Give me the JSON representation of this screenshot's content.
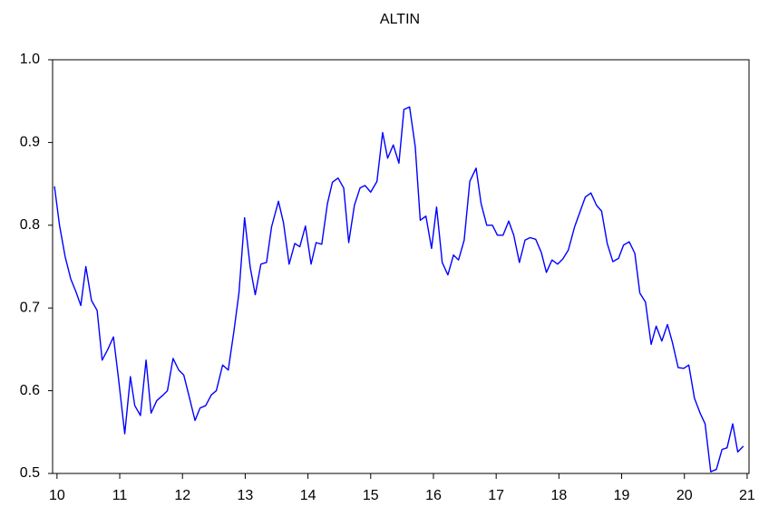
{
  "chart_data": {
    "type": "line",
    "title": "ALTIN",
    "color": "#0000ff",
    "x": [
      9.96,
      10.04,
      10.13,
      10.22,
      10.3,
      10.38,
      10.46,
      10.55,
      10.64,
      10.72,
      10.81,
      10.9,
      10.98,
      11.08,
      11.17,
      11.24,
      11.33,
      11.42,
      11.5,
      11.59,
      11.68,
      11.76,
      11.85,
      11.94,
      12.02,
      12.11,
      12.2,
      12.28,
      12.37,
      12.46,
      12.54,
      12.64,
      12.73,
      12.82,
      12.9,
      12.99,
      13.08,
      13.16,
      13.25,
      13.34,
      13.42,
      13.53,
      13.61,
      13.7,
      13.79,
      13.87,
      13.96,
      14.05,
      14.13,
      14.22,
      14.31,
      14.39,
      14.48,
      14.57,
      14.65,
      14.74,
      14.83,
      14.91,
      15.0,
      15.1,
      15.19,
      15.27,
      15.36,
      15.45,
      15.53,
      15.62,
      15.71,
      15.79,
      15.88,
      15.97,
      16.05,
      16.14,
      16.23,
      16.32,
      16.4,
      16.49,
      16.58,
      16.68,
      16.76,
      16.85,
      16.94,
      17.02,
      17.11,
      17.2,
      17.28,
      17.37,
      17.46,
      17.54,
      17.63,
      17.72,
      17.8,
      17.89,
      17.98,
      18.06,
      18.15,
      18.25,
      18.34,
      18.42,
      18.51,
      18.6,
      18.68,
      18.77,
      18.86,
      18.95,
      19.03,
      19.12,
      19.21,
      19.29,
      19.38,
      19.47,
      19.55,
      19.64,
      19.73,
      19.81,
      19.9,
      19.99,
      20.07,
      20.16,
      20.25,
      20.33,
      20.42,
      20.51,
      20.6,
      20.68,
      20.77,
      20.85,
      20.94
    ],
    "values": [
      0.847,
      0.8,
      0.762,
      0.735,
      0.72,
      0.703,
      0.75,
      0.709,
      0.697,
      0.637,
      0.65,
      0.665,
      0.615,
      0.548,
      0.617,
      0.582,
      0.57,
      0.637,
      0.573,
      0.588,
      0.594,
      0.6,
      0.639,
      0.625,
      0.619,
      0.592,
      0.564,
      0.579,
      0.582,
      0.595,
      0.6,
      0.631,
      0.625,
      0.672,
      0.718,
      0.809,
      0.749,
      0.716,
      0.753,
      0.755,
      0.798,
      0.829,
      0.803,
      0.753,
      0.778,
      0.774,
      0.799,
      0.753,
      0.779,
      0.777,
      0.826,
      0.852,
      0.857,
      0.845,
      0.779,
      0.824,
      0.845,
      0.848,
      0.84,
      0.853,
      0.912,
      0.881,
      0.897,
      0.875,
      0.94,
      0.943,
      0.895,
      0.806,
      0.811,
      0.772,
      0.822,
      0.755,
      0.74,
      0.764,
      0.758,
      0.782,
      0.853,
      0.869,
      0.826,
      0.8,
      0.8,
      0.788,
      0.788,
      0.805,
      0.788,
      0.755,
      0.782,
      0.785,
      0.783,
      0.767,
      0.743,
      0.758,
      0.753,
      0.759,
      0.77,
      0.798,
      0.817,
      0.834,
      0.839,
      0.824,
      0.817,
      0.778,
      0.756,
      0.76,
      0.776,
      0.78,
      0.766,
      0.718,
      0.707,
      0.656,
      0.678,
      0.66,
      0.68,
      0.658,
      0.628,
      0.627,
      0.631,
      0.591,
      0.573,
      0.56,
      0.502,
      0.505,
      0.529,
      0.531,
      0.56,
      0.526,
      0.533
    ],
    "xlim": [
      9.93,
      21.03
    ],
    "xticks": [
      10,
      11,
      12,
      13,
      14,
      15,
      16,
      17,
      18,
      19,
      20,
      21
    ],
    "ylim": [
      0.5,
      1.0
    ],
    "yticks": [
      0.5,
      0.6,
      0.7,
      0.8,
      0.9,
      {
        "value": 1.0,
        "label": "1.0"
      }
    ]
  }
}
